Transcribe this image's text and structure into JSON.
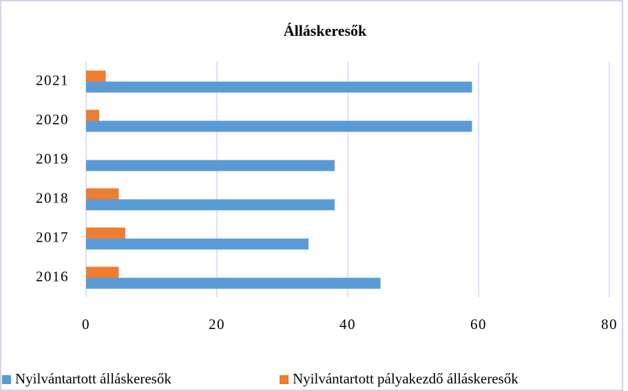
{
  "chart_data": {
    "type": "barh",
    "title": "Álláskeresők",
    "categories": [
      "2016",
      "2017",
      "2018",
      "2019",
      "2020",
      "2021"
    ],
    "series": [
      {
        "name": "Nyilvántartott álláskeresők",
        "color": "#5b9bd5",
        "values": [
          45,
          34,
          38,
          38,
          59,
          59
        ]
      },
      {
        "name": "Nyilvántartott pályakezdő álláskeresők",
        "color": "#ed7d31",
        "values": [
          5,
          6,
          5,
          0,
          2,
          3
        ]
      }
    ],
    "xlim": [
      0,
      80
    ],
    "xticks": [
      0,
      20,
      40,
      60,
      80
    ],
    "grid": true,
    "legend": "bottom"
  }
}
